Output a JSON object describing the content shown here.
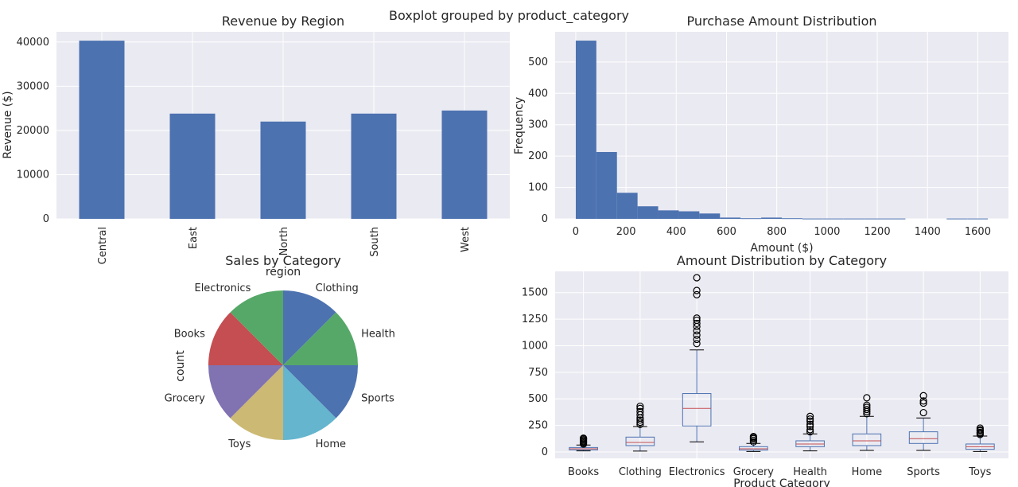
{
  "figure": {
    "suptitle": "Boxplot grouped by product_category"
  },
  "chart_data": [
    {
      "type": "bar",
      "title": "Revenue by Region",
      "xlabel": "region",
      "ylabel": "Revenue ($)",
      "categories": [
        "Central",
        "East",
        "North",
        "South",
        "West"
      ],
      "values": [
        40300,
        23800,
        22000,
        23800,
        24500
      ],
      "ylim": [
        0,
        42300
      ],
      "yticks": [
        0,
        10000,
        20000,
        30000,
        40000
      ],
      "grid": true,
      "colors": [
        "#4c72b0"
      ]
    },
    {
      "type": "bar",
      "subtype": "histogram",
      "title": "Purchase Amount Distribution",
      "xlabel": "Amount ($)",
      "ylabel": "Frequency",
      "bin_edges": [
        0,
        82,
        164,
        246,
        328,
        410,
        492,
        574,
        656,
        738,
        820,
        902,
        984,
        1066,
        1148,
        1230,
        1312,
        1394,
        1476,
        1558,
        1640
      ],
      "values": [
        568,
        213,
        83,
        40,
        27,
        24,
        17,
        4,
        2,
        4,
        2,
        1,
        1,
        1,
        1,
        1,
        0,
        0,
        1,
        1
      ],
      "xlim": [
        -82,
        1722
      ],
      "ylim": [
        0,
        596
      ],
      "xticks": [
        0,
        200,
        400,
        600,
        800,
        1000,
        1200,
        1400,
        1600
      ],
      "yticks": [
        0,
        100,
        200,
        300,
        400,
        500
      ],
      "grid": true,
      "colors": [
        "#4c72b0"
      ]
    },
    {
      "type": "pie",
      "title": "Sales by Category",
      "ylabel": "count",
      "categories": [
        "Clothing",
        "Health",
        "Sports",
        "Home",
        "Toys",
        "Grocery",
        "Books",
        "Electronics"
      ],
      "values": [
        125,
        125,
        125,
        125,
        125,
        125,
        125,
        125
      ],
      "colors": [
        "#4c72b0",
        "#55a868",
        "#4c72b0",
        "#64b5cd",
        "#ccb974",
        "#8172b2",
        "#c44e52",
        "#55a868"
      ]
    },
    {
      "type": "boxplot",
      "title": "Amount Distribution by Category",
      "xlabel": "Product Category",
      "categories": [
        "Books",
        "Clothing",
        "Electronics",
        "Grocery",
        "Health",
        "Home",
        "Sports",
        "Toys"
      ],
      "series": [
        {
          "min": 10,
          "q1": 20,
          "median": 30,
          "q3": 42,
          "max": 65,
          "outliers": [
            75,
            85,
            95,
            105,
            115,
            125,
            130
          ]
        },
        {
          "min": 8,
          "q1": 60,
          "median": 90,
          "q3": 140,
          "max": 240,
          "outliers": [
            260,
            280,
            300,
            320,
            350,
            380,
            410,
            430
          ]
        },
        {
          "min": 95,
          "q1": 245,
          "median": 410,
          "q3": 550,
          "max": 960,
          "outliers": [
            1020,
            1060,
            1100,
            1140,
            1180,
            1210,
            1240,
            1260,
            1480,
            1520,
            1640
          ]
        },
        {
          "min": 5,
          "q1": 18,
          "median": 30,
          "q3": 50,
          "max": 80,
          "outliers": [
            95,
            110,
            125,
            135,
            145
          ]
        },
        {
          "min": 10,
          "q1": 50,
          "median": 75,
          "q3": 105,
          "max": 170,
          "outliers": [
            190,
            210,
            240,
            260,
            290,
            310,
            335
          ]
        },
        {
          "min": 15,
          "q1": 60,
          "median": 105,
          "q3": 170,
          "max": 335,
          "outliers": [
            360,
            380,
            400,
            420,
            440,
            510
          ]
        },
        {
          "min": 15,
          "q1": 80,
          "median": 125,
          "q3": 190,
          "max": 320,
          "outliers": [
            370,
            460,
            480,
            530
          ]
        },
        {
          "min": 5,
          "q1": 25,
          "median": 50,
          "q3": 75,
          "max": 150,
          "outliers": [
            165,
            175,
            185,
            200,
            210,
            225
          ]
        }
      ],
      "ylim": [
        -60,
        1700
      ],
      "yticks": [
        0,
        250,
        500,
        750,
        1000,
        1250,
        1500
      ],
      "grid": true,
      "colors": {
        "box": "#4c72b0",
        "median": "#c44e52"
      }
    }
  ]
}
